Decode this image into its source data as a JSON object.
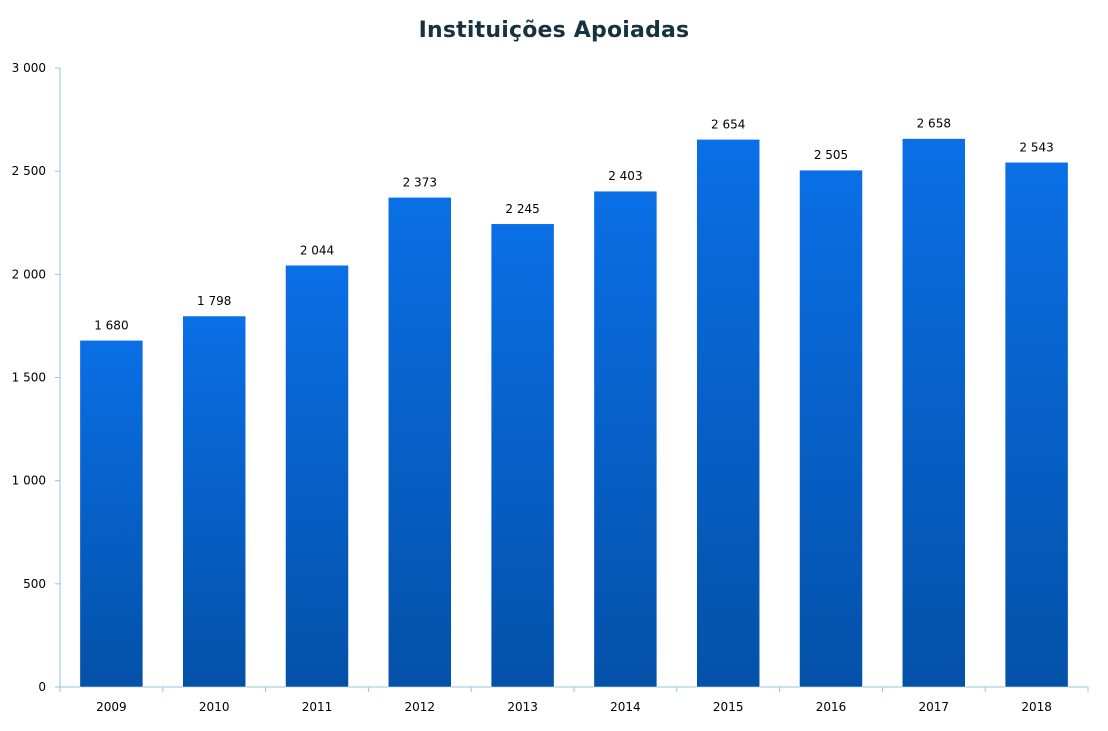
{
  "chart_data": {
    "type": "bar",
    "title": "Instituições Apoiadas",
    "categories": [
      "2009",
      "2010",
      "2011",
      "2012",
      "2013",
      "2014",
      "2015",
      "2016",
      "2017",
      "2018"
    ],
    "values": [
      1680,
      1798,
      2044,
      2373,
      2245,
      2403,
      2654,
      2505,
      2658,
      2543
    ],
    "value_labels": [
      "1 680",
      "1 798",
      "2 044",
      "2 373",
      "2 245",
      "2 403",
      "2 654",
      "2 505",
      "2 658",
      "2 543"
    ],
    "yticks": [
      0,
      500,
      1000,
      1500,
      2000,
      2500,
      3000
    ],
    "ytick_labels": [
      "0",
      "500",
      "1 000",
      "1 500",
      "2 000",
      "2 500",
      "3 000"
    ],
    "ylim": [
      0,
      3000
    ],
    "xlabel": "",
    "ylabel": "",
    "grid": false,
    "legend": "none",
    "colors": {
      "bar_top": "#0a6fe6",
      "bar_bottom": "#0451a8",
      "axis": "#8fc7dc",
      "title": "#16313f"
    }
  }
}
